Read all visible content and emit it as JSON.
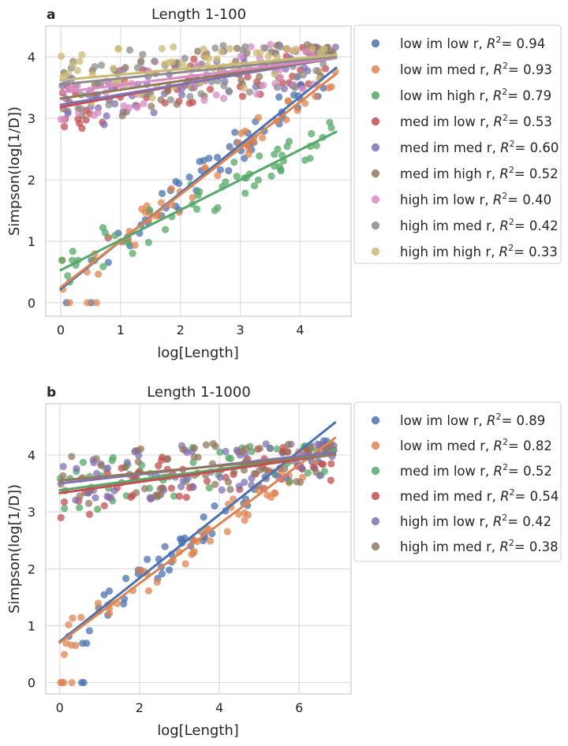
{
  "figure": {
    "panels": [
      {
        "panel_label": "a",
        "title": "Length 1-100",
        "xlabel": "log[Length]",
        "ylabel": "Simpson(log[1/D])"
      },
      {
        "panel_label": "b",
        "title": "Length 1-1000",
        "xlabel": "log[Length]",
        "ylabel": "Simpson(log[1/D])"
      }
    ]
  },
  "chart_data": [
    {
      "type": "scatter",
      "title": "Length 1-100",
      "xlabel": "log[Length]",
      "ylabel": "Simpson(log[1/D])",
      "xlim": [
        -0.25,
        4.85
      ],
      "ylim": [
        -0.22,
        4.5
      ],
      "xticks": [
        0,
        1,
        2,
        3,
        4
      ],
      "yticks": [
        0,
        1,
        2,
        3,
        4
      ],
      "grid": true,
      "legend_position": "outside-right",
      "series": [
        {
          "name": "low im low r",
          "r2": "0.94",
          "color": "#4c72b0",
          "regression": {
            "x": [
              0,
              4.6
            ],
            "y": [
              0.22,
              3.82
            ]
          },
          "band": "low"
        },
        {
          "name": "low im med r",
          "r2": "0.93",
          "color": "#dd8452",
          "regression": {
            "x": [
              0,
              4.6
            ],
            "y": [
              0.25,
              3.72
            ]
          },
          "band": "low"
        },
        {
          "name": "low im high r",
          "r2": "0.79",
          "color": "#55a868",
          "regression": {
            "x": [
              0,
              4.6
            ],
            "y": [
              0.53,
              2.78
            ]
          },
          "band": "lowflat"
        },
        {
          "name": "med im low r",
          "r2": "0.53",
          "color": "#c44e52",
          "regression": {
            "x": [
              0,
              4.6
            ],
            "y": [
              3.18,
              4.02
            ]
          },
          "band": "high"
        },
        {
          "name": "med im med r",
          "r2": "0.60",
          "color": "#8172b3",
          "regression": {
            "x": [
              0,
              4.6
            ],
            "y": [
              3.22,
              3.98
            ]
          },
          "band": "high"
        },
        {
          "name": "med im high r",
          "r2": "0.52",
          "color": "#937860",
          "regression": {
            "x": [
              0,
              4.6
            ],
            "y": [
              3.32,
              3.98
            ]
          },
          "band": "high"
        },
        {
          "name": "high im low r",
          "r2": "0.40",
          "color": "#da8bc3",
          "regression": {
            "x": [
              0,
              4.6
            ],
            "y": [
              3.42,
              3.98
            ]
          },
          "band": "high"
        },
        {
          "name": "high im med r",
          "r2": "0.42",
          "color": "#8c8c8c",
          "regression": {
            "x": [
              0,
              4.6
            ],
            "y": [
              3.55,
              4.0
            ]
          },
          "band": "high"
        },
        {
          "name": "high im high r",
          "r2": "0.33",
          "color": "#ccb974",
          "regression": {
            "x": [
              0,
              4.6
            ],
            "y": [
              3.62,
              4.03
            ]
          },
          "band": "high"
        }
      ]
    },
    {
      "type": "scatter",
      "title": "Length 1-1000",
      "xlabel": "log[Length]",
      "ylabel": "Simpson(log[1/D])",
      "xlim": [
        -0.35,
        7.3
      ],
      "ylim": [
        -0.2,
        4.9
      ],
      "xticks": [
        0,
        2,
        4,
        6
      ],
      "yticks": [
        0,
        1,
        2,
        3,
        4
      ],
      "grid": true,
      "legend_position": "outside-right",
      "series": [
        {
          "name": "low im low r",
          "r2": "0.89",
          "color": "#4c72b0",
          "regression": {
            "x": [
              0,
              6.9
            ],
            "y": [
              0.72,
              4.57
            ]
          },
          "band": "low"
        },
        {
          "name": "low im med r",
          "r2": "0.82",
          "color": "#dd8452",
          "regression": {
            "x": [
              0,
              6.9
            ],
            "y": [
              0.7,
              4.3
            ]
          },
          "band": "low"
        },
        {
          "name": "med im low r",
          "r2": "0.52",
          "color": "#55a868",
          "regression": {
            "x": [
              0,
              6.9
            ],
            "y": [
              3.38,
              4.02
            ]
          },
          "band": "high"
        },
        {
          "name": "med im med r",
          "r2": "0.54",
          "color": "#c44e52",
          "regression": {
            "x": [
              0,
              6.9
            ],
            "y": [
              3.33,
              4.01
            ]
          },
          "band": "high"
        },
        {
          "name": "high im low r",
          "r2": "0.42",
          "color": "#8172b3",
          "regression": {
            "x": [
              0,
              6.9
            ],
            "y": [
              3.5,
              4.05
            ]
          },
          "band": "high"
        },
        {
          "name": "high im med r",
          "r2": "0.38",
          "color": "#937860",
          "regression": {
            "x": [
              0,
              6.9
            ],
            "y": [
              3.55,
              4.0
            ]
          },
          "band": "high"
        }
      ]
    }
  ]
}
